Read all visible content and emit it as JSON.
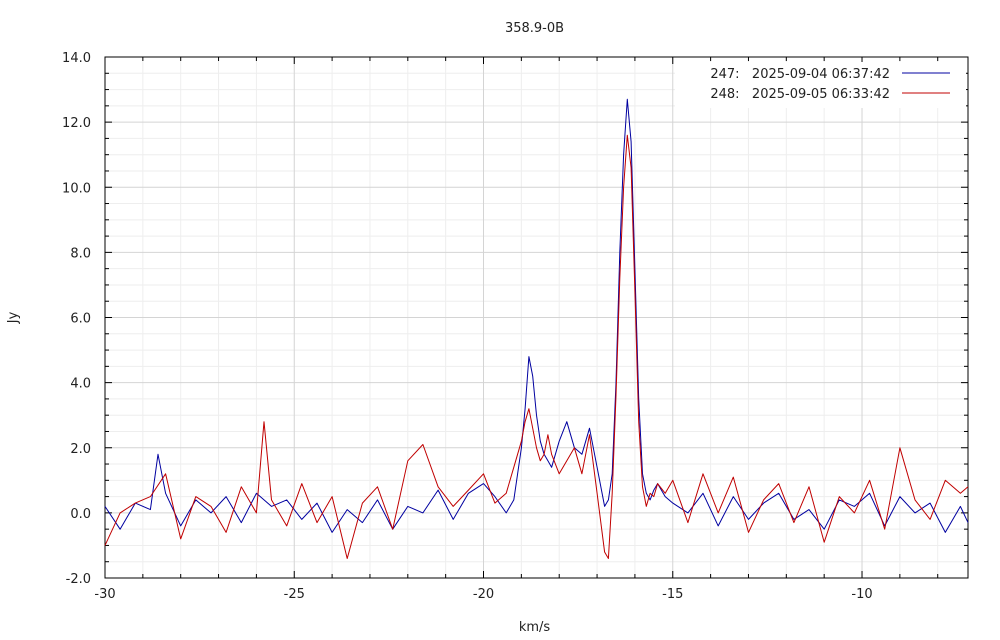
{
  "chart_data": {
    "type": "line",
    "title": "358.9-0B",
    "xlabel": "km/s",
    "ylabel": "Jy",
    "xlim": [
      -30,
      -7.2
    ],
    "ylim": [
      -2.0,
      14.0
    ],
    "xticks": [
      -30,
      -25,
      -20,
      -15,
      -10
    ],
    "xtick_labels": [
      "-30",
      "-25",
      "-20",
      "-15",
      "-10"
    ],
    "yticks": [
      -2,
      0,
      2,
      4,
      6,
      8,
      10,
      12,
      14
    ],
    "ytick_labels": [
      "-2.0",
      "0.0",
      "2.0",
      "4.0",
      "6.0",
      "8.0",
      "10.0",
      "12.0",
      "14.0"
    ],
    "grid": true,
    "legend_position": "top-right",
    "series": [
      {
        "name": "247:   2025-09-04 06:37:42",
        "color": "#0000a0",
        "x": [
          -30.0,
          -29.6,
          -29.2,
          -28.8,
          -28.6,
          -28.4,
          -28.0,
          -27.6,
          -27.2,
          -26.8,
          -26.4,
          -26.0,
          -25.6,
          -25.2,
          -24.8,
          -24.4,
          -24.0,
          -23.6,
          -23.2,
          -22.8,
          -22.4,
          -22.0,
          -21.6,
          -21.2,
          -20.8,
          -20.4,
          -20.0,
          -19.7,
          -19.4,
          -19.2,
          -19.0,
          -18.9,
          -18.8,
          -18.7,
          -18.6,
          -18.5,
          -18.4,
          -18.3,
          -18.2,
          -18.0,
          -17.8,
          -17.6,
          -17.4,
          -17.2,
          -17.0,
          -16.8,
          -16.7,
          -16.6,
          -16.5,
          -16.4,
          -16.3,
          -16.2,
          -16.1,
          -16.0,
          -15.9,
          -15.8,
          -15.7,
          -15.6,
          -15.5,
          -15.4,
          -15.2,
          -15.0,
          -14.6,
          -14.2,
          -13.8,
          -13.4,
          -13.0,
          -12.6,
          -12.2,
          -11.8,
          -11.4,
          -11.0,
          -10.6,
          -10.2,
          -9.8,
          -9.4,
          -9.0,
          -8.6,
          -8.2,
          -7.8,
          -7.4,
          -7.2
        ],
        "values": [
          0.2,
          -0.5,
          0.3,
          0.1,
          1.8,
          0.6,
          -0.4,
          0.4,
          0.0,
          0.5,
          -0.3,
          0.6,
          0.2,
          0.4,
          -0.2,
          0.3,
          -0.6,
          0.1,
          -0.3,
          0.4,
          -0.5,
          0.2,
          0.0,
          0.7,
          -0.2,
          0.6,
          0.9,
          0.5,
          0.0,
          0.4,
          2.0,
          3.2,
          4.8,
          4.2,
          3.0,
          2.2,
          1.8,
          1.6,
          1.4,
          2.2,
          2.8,
          2.0,
          1.8,
          2.6,
          1.4,
          0.2,
          0.4,
          1.2,
          4.0,
          8.0,
          11.0,
          12.7,
          11.4,
          7.5,
          3.5,
          1.2,
          0.6,
          0.4,
          0.7,
          0.9,
          0.5,
          0.3,
          0.0,
          0.6,
          -0.4,
          0.5,
          -0.2,
          0.3,
          0.6,
          -0.2,
          0.1,
          -0.5,
          0.4,
          0.2,
          0.6,
          -0.4,
          0.5,
          0.0,
          0.3,
          -0.6,
          0.2,
          -0.3
        ]
      },
      {
        "name": "248:   2025-09-05 06:33:42",
        "color": "#c00000",
        "x": [
          -30.0,
          -29.6,
          -29.2,
          -28.8,
          -28.4,
          -28.0,
          -27.6,
          -27.2,
          -26.8,
          -26.4,
          -26.0,
          -25.8,
          -25.6,
          -25.2,
          -24.8,
          -24.4,
          -24.0,
          -23.6,
          -23.2,
          -22.8,
          -22.4,
          -22.0,
          -21.6,
          -21.2,
          -20.8,
          -20.4,
          -20.0,
          -19.7,
          -19.4,
          -19.2,
          -19.0,
          -18.9,
          -18.8,
          -18.7,
          -18.6,
          -18.5,
          -18.4,
          -18.3,
          -18.2,
          -18.0,
          -17.8,
          -17.6,
          -17.4,
          -17.2,
          -17.0,
          -16.8,
          -16.7,
          -16.6,
          -16.5,
          -16.4,
          -16.3,
          -16.2,
          -16.1,
          -16.0,
          -15.9,
          -15.8,
          -15.7,
          -15.6,
          -15.5,
          -15.4,
          -15.2,
          -15.0,
          -14.6,
          -14.2,
          -13.8,
          -13.4,
          -13.0,
          -12.6,
          -12.2,
          -11.8,
          -11.4,
          -11.0,
          -10.6,
          -10.2,
          -9.8,
          -9.4,
          -9.0,
          -8.6,
          -8.2,
          -7.8,
          -7.4,
          -7.2
        ],
        "values": [
          -1.0,
          0.0,
          0.3,
          0.5,
          1.2,
          -0.8,
          0.5,
          0.2,
          -0.6,
          0.8,
          0.0,
          2.8,
          0.4,
          -0.4,
          0.9,
          -0.3,
          0.5,
          -1.4,
          0.3,
          0.8,
          -0.5,
          1.6,
          2.1,
          0.8,
          0.2,
          0.7,
          1.2,
          0.3,
          0.6,
          1.4,
          2.2,
          2.8,
          3.2,
          2.6,
          2.0,
          1.6,
          1.8,
          2.4,
          1.8,
          1.2,
          1.6,
          2.0,
          1.2,
          2.4,
          0.6,
          -1.2,
          -1.4,
          0.6,
          3.6,
          7.2,
          10.0,
          11.6,
          10.6,
          6.8,
          2.8,
          0.8,
          0.2,
          0.6,
          0.5,
          0.9,
          0.6,
          1.0,
          -0.3,
          1.2,
          0.0,
          1.1,
          -0.6,
          0.4,
          0.9,
          -0.3,
          0.8,
          -0.9,
          0.5,
          0.0,
          1.0,
          -0.5,
          2.0,
          0.4,
          -0.2,
          1.0,
          0.6,
          0.8
        ]
      }
    ]
  }
}
